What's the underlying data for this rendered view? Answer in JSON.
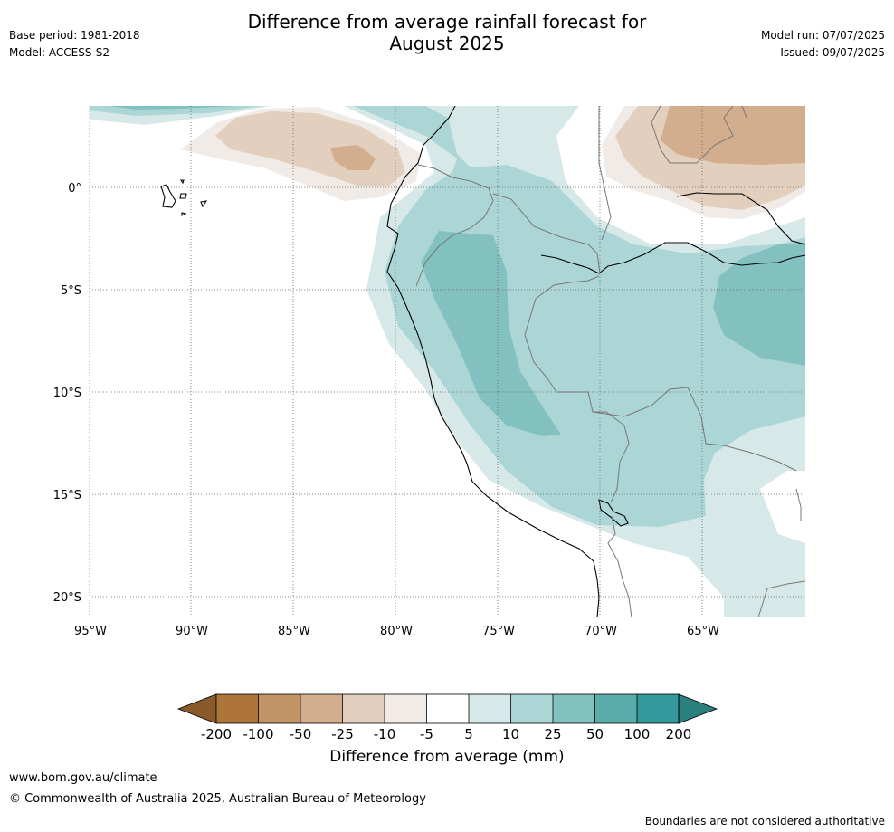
{
  "header": {
    "title_line1": "Difference from average rainfall forecast for",
    "title_line2": "August 2025",
    "base_period": "Base period: 1981-2018",
    "model": "Model: ACCESS-S2",
    "model_run": "Model run: 07/07/2025",
    "issued": "Issued: 09/07/2025"
  },
  "map": {
    "lat_labels": [
      "0°",
      "5°S",
      "10°S",
      "15°S",
      "20°S"
    ],
    "lon_labels": [
      "95°W",
      "90°W",
      "85°W",
      "80°W",
      "75°W",
      "70°W",
      "65°W"
    ],
    "lat_range": [
      -21,
      4
    ],
    "lon_range": [
      -95,
      -60
    ]
  },
  "colorbar": {
    "title": "Difference from average (mm)",
    "ticks": [
      "-200",
      "-100",
      "-50",
      "-25",
      "-10",
      "-5",
      "5",
      "10",
      "25",
      "50",
      "100",
      "200"
    ],
    "colors": [
      "#8b5a2b",
      "#ae753a",
      "#c29366",
      "#d2ae8e",
      "#e3cfbd",
      "#f0ebe7",
      "#ffffff",
      "#d6e9e8",
      "#acd6d6",
      "#82c1bf",
      "#5aadab",
      "#33999a",
      "#2a7f7f"
    ]
  },
  "footer": {
    "url": "www.bom.gov.au/climate",
    "copyright": "© Commonwealth of Australia 2025, Australian Bureau of Meteorology",
    "disclaimer": "Boundaries are not considered authoritative"
  }
}
